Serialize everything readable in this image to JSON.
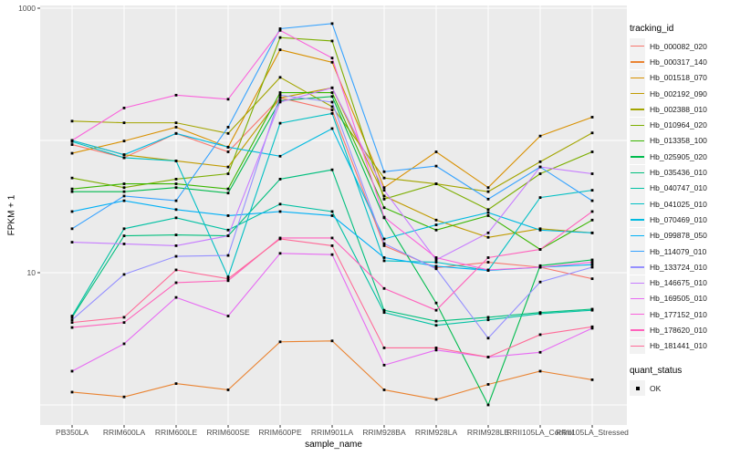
{
  "figure": {
    "bg": "#FFFFFF",
    "panel_bg": "#EBEBEB",
    "grid_color": "#FFFFFF",
    "tick_color": "#333333",
    "axis_text_color": "#4D4D4D",
    "point_color": "#000000"
  },
  "chart_data": {
    "type": "line",
    "title": "",
    "xlabel": "sample_name",
    "ylabel": "FPKM + 1",
    "y_scale": "log10",
    "ylim": [
      0.7,
      1050
    ],
    "y_labeled_breaks": [
      1000,
      10
    ],
    "y_gridline_values": [
      1,
      10,
      100,
      1000
    ],
    "grid": true,
    "legend_position": "right",
    "legend_title": "tracking_id",
    "legend2_title": "quant_status",
    "legend2_items": [
      {
        "label": "OK",
        "marker": "black-square"
      }
    ],
    "x_categories": [
      "PB350LA",
      "RRIM600LA",
      "RRIM600LE",
      "RRIM600SE",
      "RRIM600PE",
      "RRIM901LA",
      "RRIM928BA",
      "RRIM928LA",
      "RRIM928LE",
      "RRII105LA_Control",
      "RRII105LA_Stressed"
    ],
    "series": [
      {
        "name": "Hb_000082_020",
        "color": "#F8766D",
        "values": [
          93,
          74,
          113,
          82,
          210,
          170,
          16,
          10.9,
          12,
          11,
          9
        ]
      },
      {
        "name": "Hb_000317_140",
        "color": "#EA8331",
        "values": [
          1.25,
          1.15,
          1.45,
          1.3,
          3.0,
          3.05,
          1.3,
          1.1,
          1.43,
          1.8,
          1.55
        ]
      },
      {
        "name": "Hb_001518_070",
        "color": "#D89000",
        "values": [
          80,
          99,
          126,
          89,
          485,
          390,
          44,
          82,
          44,
          108,
          150
        ]
      },
      {
        "name": "Hb_002192_090",
        "color": "#C09B00",
        "values": [
          100,
          78,
          70,
          63,
          210,
          250,
          38,
          25,
          18.5,
          21.5,
          20
        ]
      },
      {
        "name": "Hb_002388_010",
        "color": "#A3A500",
        "values": [
          140,
          136,
          136,
          113,
          300,
          180,
          52,
          47,
          41,
          69,
          114
        ]
      },
      {
        "name": "Hb_010964_020",
        "color": "#7CAE00",
        "values": [
          52,
          44,
          51,
          56,
          600,
          565,
          36,
          47,
          30,
          56,
          82
        ]
      },
      {
        "name": "Hb_013358_100",
        "color": "#39B600",
        "values": [
          43,
          47,
          47,
          43,
          230,
          230,
          31,
          21,
          27,
          15,
          25
        ]
      },
      {
        "name": "Hb_025905_020",
        "color": "#00BB4E",
        "values": [
          41,
          41,
          44,
          40,
          200,
          215,
          26,
          5.9,
          1.0,
          11.3,
          12.5
        ]
      },
      {
        "name": "Hb_035436_010",
        "color": "#00BF7D",
        "values": [
          4.6,
          19,
          19.3,
          19,
          51,
          60,
          5.2,
          4.3,
          4.6,
          5.0,
          5.3
        ]
      },
      {
        "name": "Hb_040747_010",
        "color": "#00C1A3",
        "values": [
          4.7,
          21.5,
          26,
          21,
          33,
          29,
          5.0,
          4.0,
          4.4,
          4.9,
          5.2
        ]
      },
      {
        "name": "Hb_041025_010",
        "color": "#00BFC4",
        "values": [
          98,
          74,
          70,
          9.3,
          135,
          160,
          12.3,
          12,
          10.4,
          37,
          42
        ]
      },
      {
        "name": "Hb_070469_010",
        "color": "#00BAE0",
        "values": [
          100,
          78,
          113,
          89,
          76,
          123,
          18,
          23,
          28.5,
          21,
          20
        ]
      },
      {
        "name": "Hb_099878_050",
        "color": "#00B0F6",
        "values": [
          29,
          35,
          30,
          27,
          29,
          27,
          13,
          11.2,
          10.4,
          11,
          11.5
        ]
      },
      {
        "name": "Hb_114079_010",
        "color": "#35A2FF",
        "values": [
          21.5,
          38,
          35,
          126,
          700,
          765,
          58,
          64,
          36,
          63,
          35
        ]
      },
      {
        "name": "Hb_133724_010",
        "color": "#9590FF",
        "values": [
          4.4,
          9.7,
          13.3,
          13.5,
          220,
          195,
          16.6,
          10.7,
          3.2,
          8.5,
          11
        ]
      },
      {
        "name": "Hb_146675_010",
        "color": "#C77CFF",
        "values": [
          17,
          16.5,
          16,
          19,
          195,
          250,
          42,
          12.5,
          20,
          63,
          56
        ]
      },
      {
        "name": "Hb_169505_010",
        "color": "#E76BF3",
        "values": [
          1.8,
          2.9,
          6.5,
          4.7,
          14,
          13.7,
          2.0,
          2.6,
          2.3,
          2.5,
          3.8
        ]
      },
      {
        "name": "Hb_177152_010",
        "color": "#FA62DB",
        "values": [
          100,
          176,
          220,
          205,
          680,
          420,
          26.3,
          13,
          10.5,
          11,
          12
        ]
      },
      {
        "name": "Hb_178620_010",
        "color": "#FF62BC",
        "values": [
          3.85,
          4.2,
          8.4,
          8.7,
          18.3,
          18.3,
          7.6,
          5.2,
          13,
          15,
          29
        ]
      },
      {
        "name": "Hb_181441_010",
        "color": "#FF6A98",
        "values": [
          4.2,
          4.6,
          10.5,
          9.0,
          18,
          16,
          2.7,
          2.7,
          2.3,
          3.4,
          3.9
        ]
      }
    ]
  }
}
